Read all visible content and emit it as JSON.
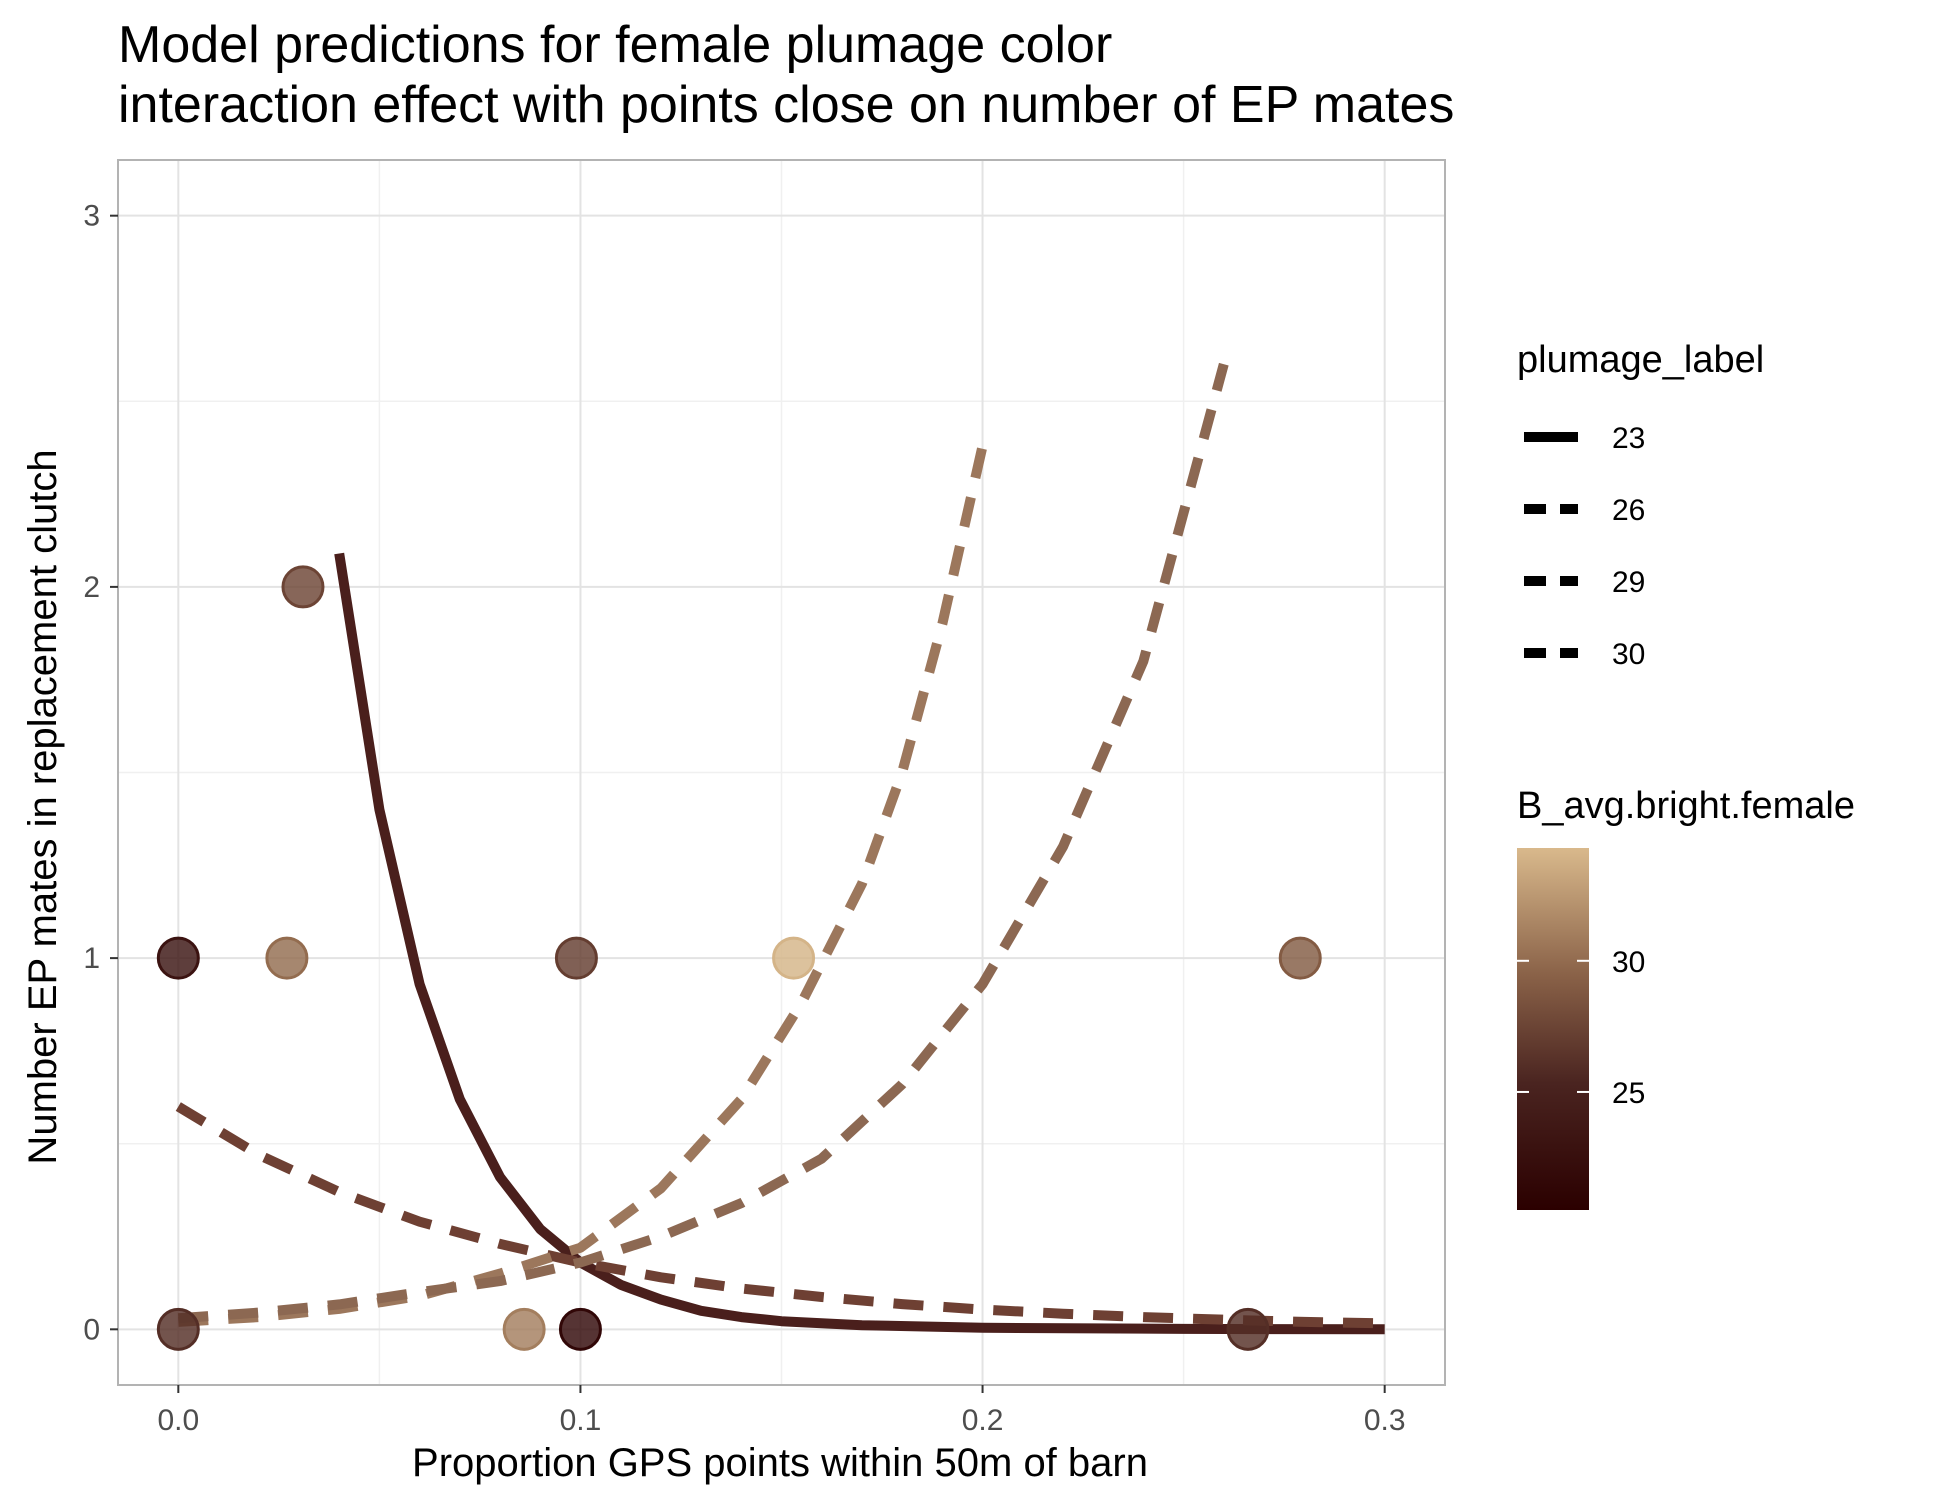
{
  "chart_data": {
    "type": "line",
    "title": "Model predictions for female plumage color",
    "subtitle": "interaction effect with points close on number of EP mates",
    "xlabel": "Proportion GPS points within 50m of barn",
    "ylabel": "Number EP mates in replacement clutch",
    "xlim": [
      -0.015,
      0.315
    ],
    "ylim": [
      -0.15,
      3.15
    ],
    "x_ticks": [
      0.0,
      0.1,
      0.2,
      0.3
    ],
    "x_tick_labels": [
      "0.0",
      "0.1",
      "0.2",
      "0.3"
    ],
    "y_ticks": [
      0,
      1,
      2,
      3
    ],
    "y_tick_labels": [
      "0",
      "1",
      "2",
      "3"
    ],
    "grid": true,
    "legend_linetype": {
      "title": "plumage_label",
      "entries": [
        "23",
        "26",
        "29",
        "30"
      ],
      "placement": "right"
    },
    "legend_color": {
      "title": "B_avg.bright.female",
      "tick_labels": [
        "25",
        "30"
      ],
      "tick_values": [
        25,
        30
      ],
      "range": [
        20.5,
        34.3
      ],
      "color_low": "#2b0000",
      "color_high": "#d9b98c",
      "placement": "right"
    },
    "series": [
      {
        "label": "23",
        "linetype": "solid",
        "color": "#4a1f1c",
        "x": [
          0.04,
          0.05,
          0.06,
          0.07,
          0.08,
          0.09,
          0.1,
          0.11,
          0.12,
          0.13,
          0.14,
          0.15,
          0.17,
          0.2,
          0.25,
          0.3
        ],
        "y": [
          2.09,
          1.4,
          0.93,
          0.62,
          0.41,
          0.27,
          0.18,
          0.12,
          0.08,
          0.05,
          0.033,
          0.022,
          0.011,
          0.004,
          0.001,
          0.0
        ]
      },
      {
        "label": "26",
        "linetype": "dashed",
        "color": "#6e4033",
        "x": [
          0.0,
          0.02,
          0.04,
          0.06,
          0.08,
          0.1,
          0.12,
          0.14,
          0.16,
          0.18,
          0.2,
          0.22,
          0.24,
          0.26,
          0.28,
          0.3
        ],
        "y": [
          0.6,
          0.47,
          0.37,
          0.29,
          0.23,
          0.18,
          0.14,
          0.11,
          0.087,
          0.068,
          0.053,
          0.042,
          0.033,
          0.026,
          0.02,
          0.016
        ]
      },
      {
        "label": "29",
        "linetype": "dashed",
        "color": "#9c775c",
        "x": [
          0.0,
          0.02,
          0.04,
          0.06,
          0.08,
          0.1,
          0.12,
          0.14,
          0.155,
          0.17,
          0.18,
          0.19,
          0.2
        ],
        "y": [
          0.02,
          0.033,
          0.055,
          0.09,
          0.15,
          0.22,
          0.38,
          0.62,
          0.88,
          1.2,
          1.5,
          1.9,
          2.38
        ]
      },
      {
        "label": "30",
        "linetype": "dashed",
        "color": "#8c6852",
        "x": [
          0.0,
          0.02,
          0.04,
          0.06,
          0.08,
          0.1,
          0.12,
          0.14,
          0.16,
          0.18,
          0.2,
          0.22,
          0.24,
          0.26
        ],
        "y": [
          0.03,
          0.045,
          0.067,
          0.1,
          0.13,
          0.18,
          0.25,
          0.34,
          0.46,
          0.66,
          0.93,
          1.3,
          1.8,
          2.6
        ]
      }
    ],
    "points": [
      {
        "x": 0.0,
        "y": 1,
        "value": 23.0
      },
      {
        "x": 0.0,
        "y": 0,
        "value": 26.0
      },
      {
        "x": 0.027,
        "y": 1,
        "value": 30.0
      },
      {
        "x": 0.031,
        "y": 2,
        "value": 27.5
      },
      {
        "x": 0.086,
        "y": 0,
        "value": 31.0
      },
      {
        "x": 0.099,
        "y": 1,
        "value": 27.0
      },
      {
        "x": 0.1,
        "y": 0,
        "value": 21.5
      },
      {
        "x": 0.153,
        "y": 1,
        "value": 34.0
      },
      {
        "x": 0.266,
        "y": 0,
        "value": 26.0
      },
      {
        "x": 0.279,
        "y": 1,
        "value": 29.0
      }
    ]
  }
}
